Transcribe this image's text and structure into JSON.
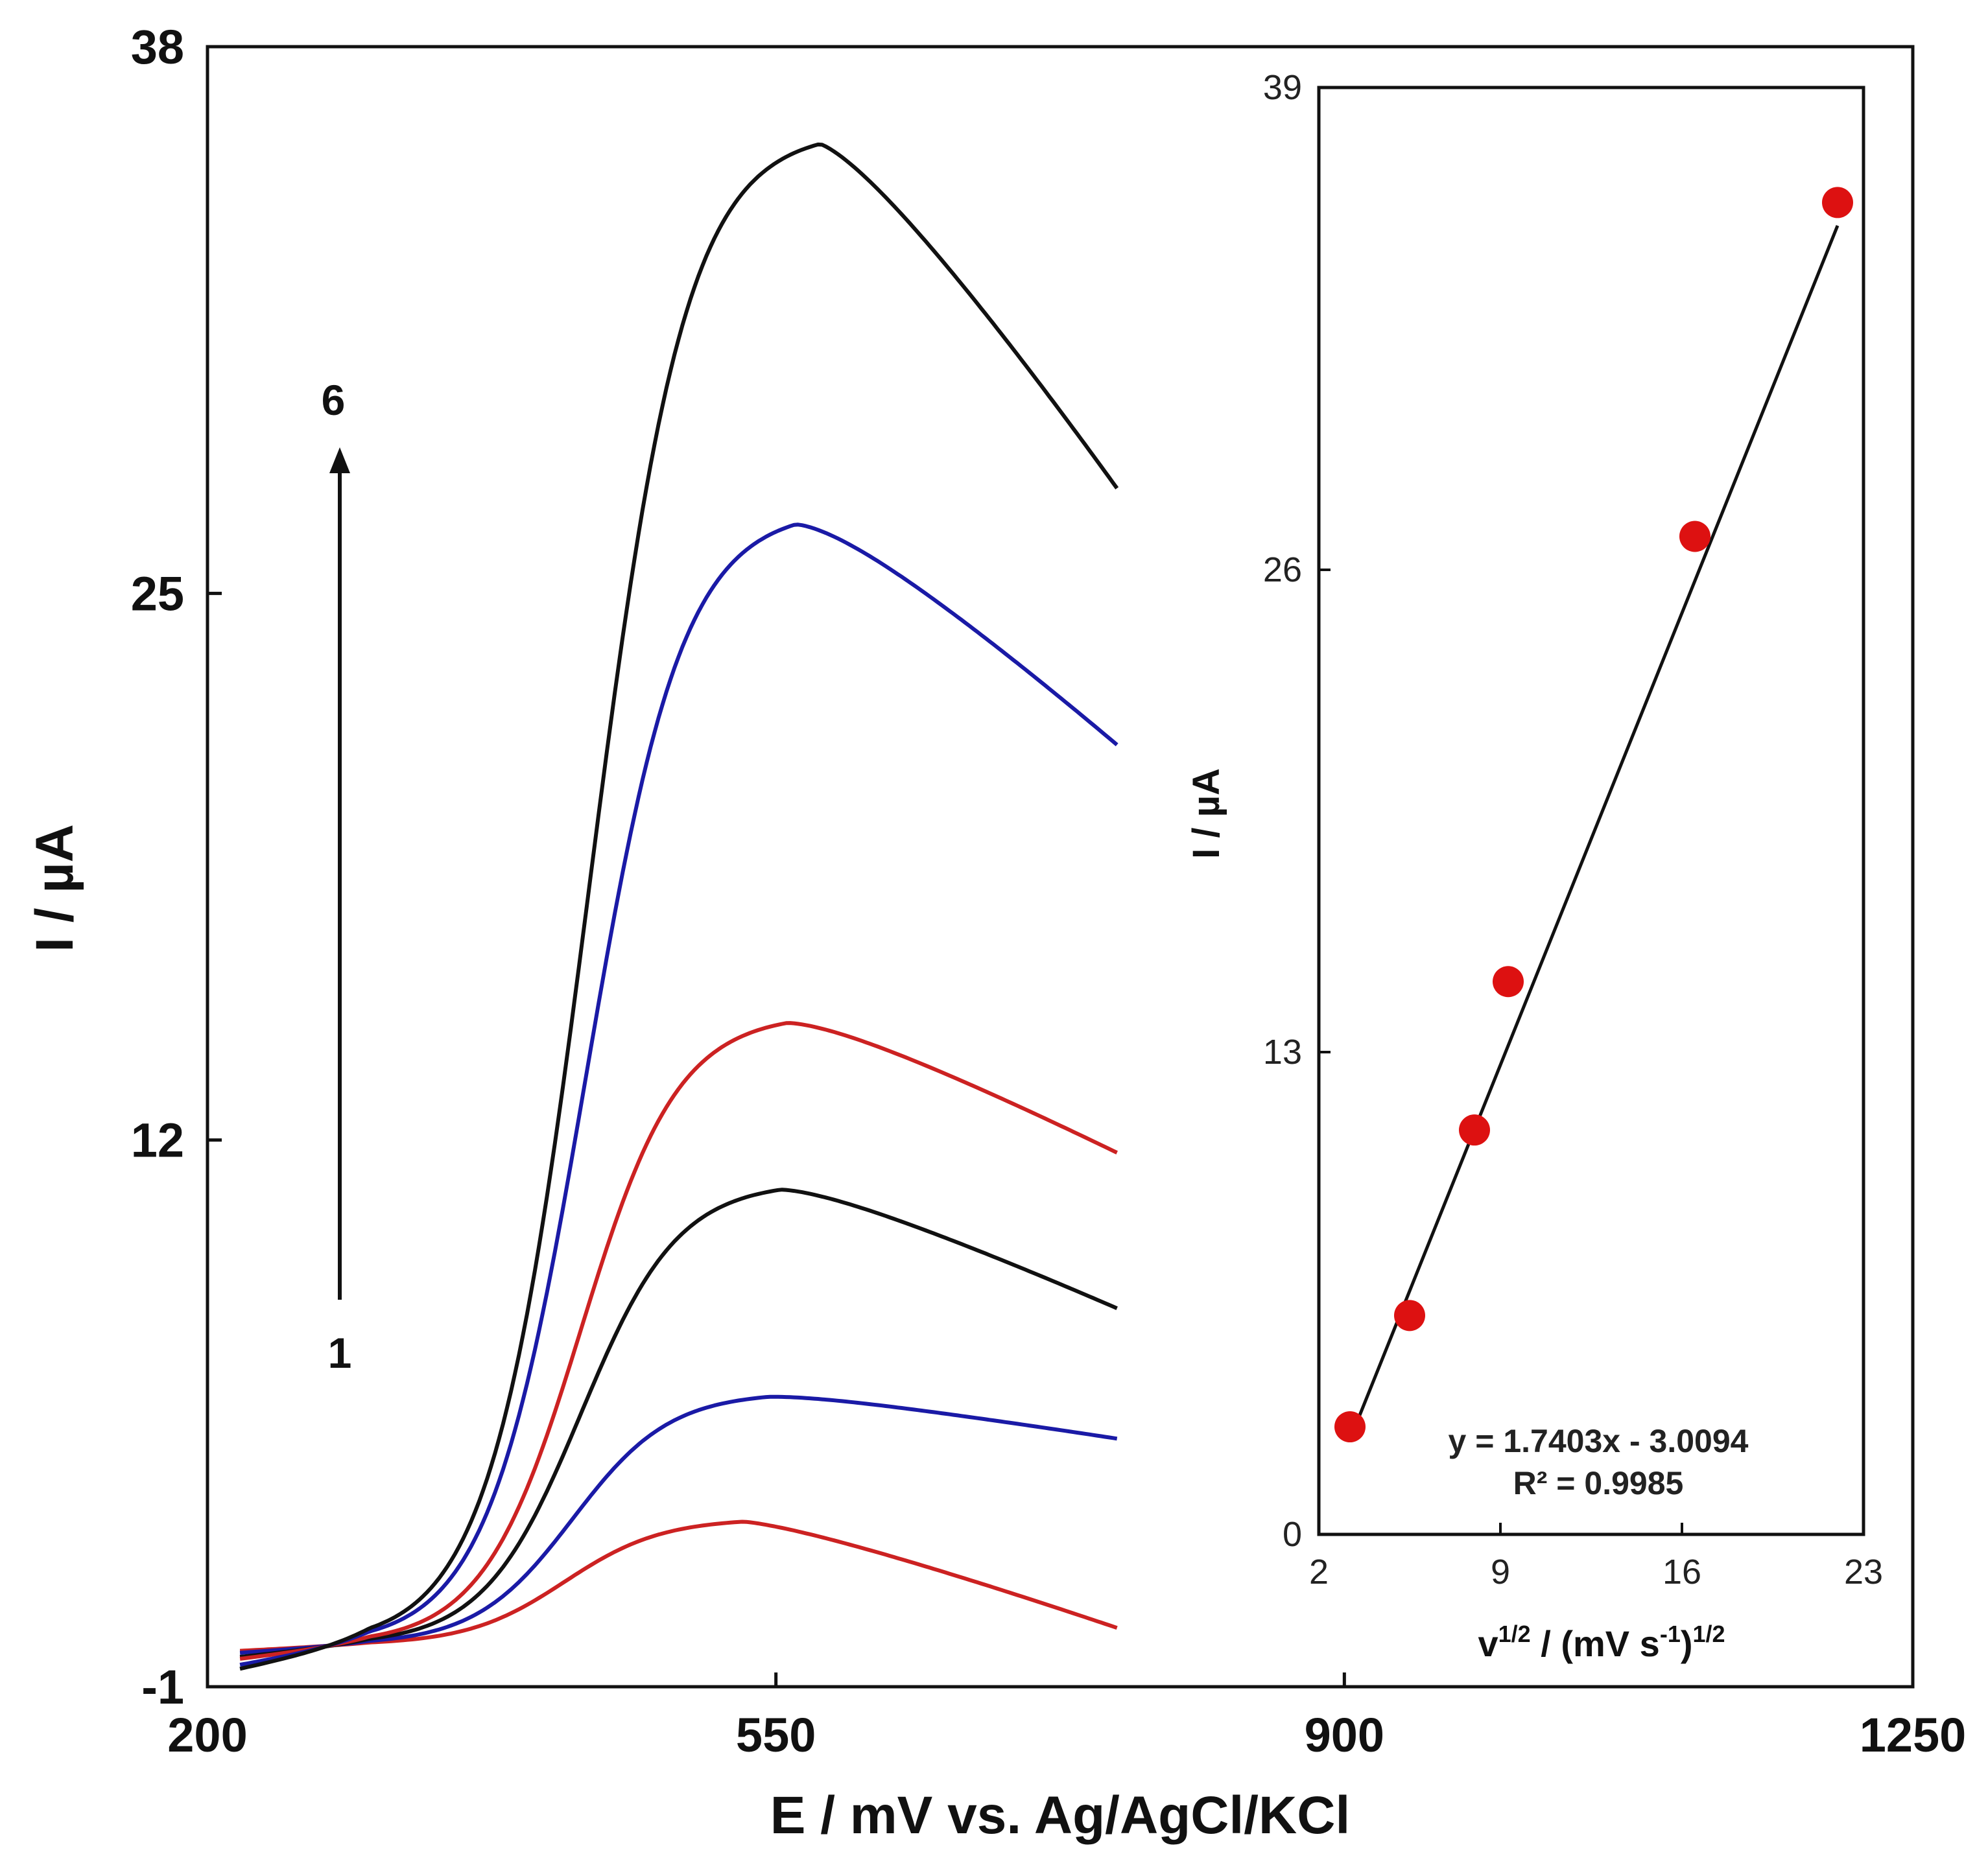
{
  "chart_data": [
    {
      "type": "line",
      "name": "main",
      "xlabel": "E / mV vs. Ag/AgCl/KCl",
      "ylabel": "I / µA",
      "xlim": [
        200,
        1250
      ],
      "ylim": [
        -1,
        38
      ],
      "xticks": [
        "200",
        "550",
        "900",
        "1250"
      ],
      "yticks": [
        "-1",
        "12",
        "25",
        "38"
      ],
      "annotations": {
        "arrow_start_label": "1",
        "arrow_end_label": "6"
      },
      "series": [
        {
          "name": "1",
          "color": "#cc2222",
          "base": 0,
          "rise": 3.0,
          "e_half": 420,
          "width": 30,
          "peak_e": 530,
          "tail": 2.6,
          "end_drop": 0.6
        },
        {
          "name": "2",
          "color": "#1a1aa6",
          "base": 0,
          "rise": 6.0,
          "e_half": 425,
          "width": 30,
          "peak_e": 545,
          "tail": 1.1,
          "end_drop": 0.8
        },
        {
          "name": "3",
          "color": "#111111",
          "base": 0,
          "rise": 11.0,
          "e_half": 430,
          "width": 30,
          "peak_e": 553,
          "tail": 3.0,
          "end_drop": 1.2
        },
        {
          "name": "4",
          "color": "#cc2222",
          "base": 0,
          "rise": 15.0,
          "e_half": 430,
          "width": 30,
          "peak_e": 557,
          "tail": 3.3,
          "end_drop": 1.4
        },
        {
          "name": "5",
          "color": "#1a1aa6",
          "base": 0,
          "rise": 27.0,
          "e_half": 433,
          "width": 30,
          "peak_e": 562,
          "tail": 5.6,
          "end_drop": 2.0
        },
        {
          "name": "6",
          "color": "#111111",
          "base": 0,
          "rise": 36.0,
          "e_half": 435,
          "width": 30,
          "peak_e": 577,
          "tail": 8.5,
          "end_drop": 2.4
        }
      ],
      "x_start": 220,
      "x_end": 760
    },
    {
      "type": "scatter",
      "name": "inset",
      "xlabel_base": "v",
      "xlabel_sup1": "1/2",
      "xlabel_mid": " / (mV  s",
      "xlabel_sup2": "-1",
      "xlabel_end": ")",
      "xlabel_sup3": "1/2",
      "ylabel": "I / µA",
      "xlim": [
        2,
        23
      ],
      "ylim": [
        0,
        39
      ],
      "xticks": [
        "2",
        "9",
        "16",
        "23"
      ],
      "yticks": [
        "0",
        "13",
        "26",
        "39"
      ],
      "points": [
        {
          "x": 3.2,
          "y": 2.9
        },
        {
          "x": 5.5,
          "y": 5.9
        },
        {
          "x": 8.0,
          "y": 10.9
        },
        {
          "x": 9.3,
          "y": 14.9
        },
        {
          "x": 16.5,
          "y": 26.9
        },
        {
          "x": 22.0,
          "y": 35.9
        }
      ],
      "point_color": "#dd1111",
      "fit": {
        "slope": 1.7403,
        "intercept": -3.0094,
        "x_from": 3.2,
        "x_to": 22.0
      },
      "equation": "y = 1.7403x  - 3.0094",
      "r_squared": "R² = 0.9985"
    }
  ]
}
